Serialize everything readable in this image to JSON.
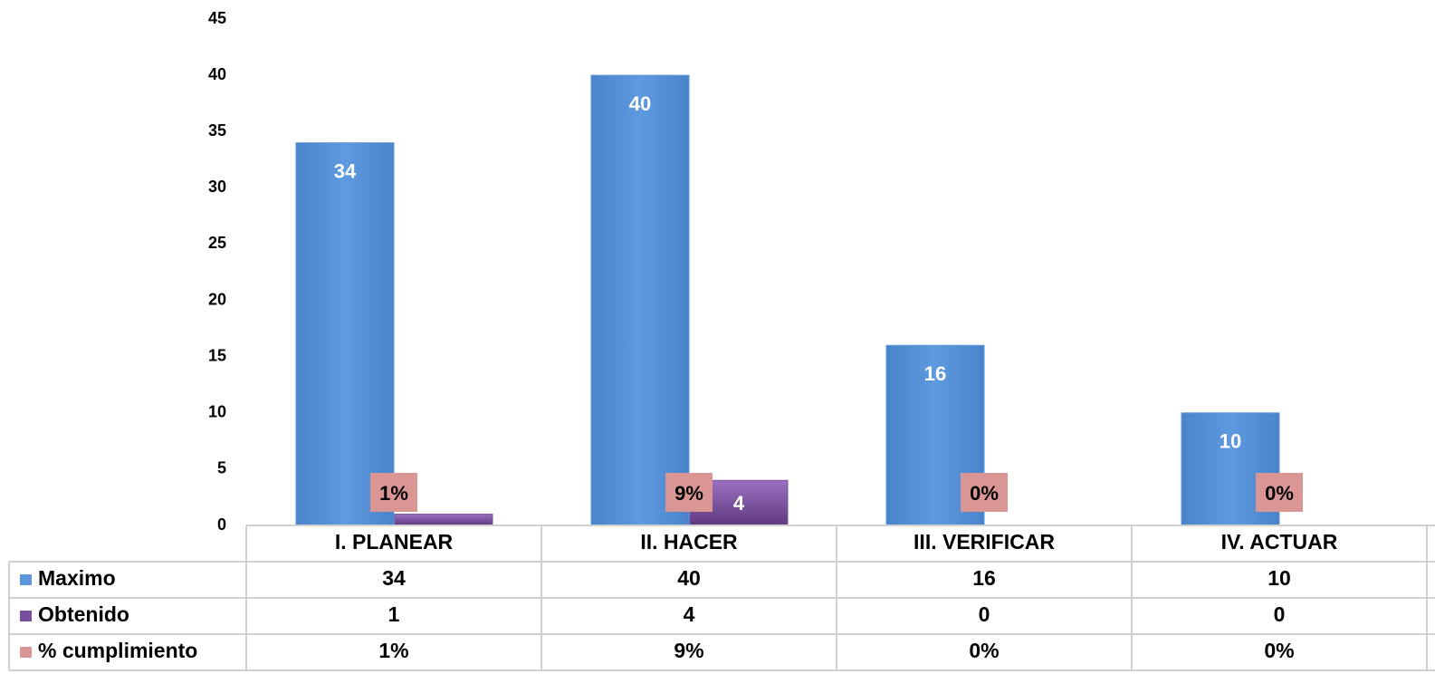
{
  "chart_data": {
    "type": "bar",
    "categories": [
      "I. PLANEAR",
      "II. HACER",
      "III. VERIFICAR",
      "IV. ACTUAR"
    ],
    "series": [
      {
        "name": "Maximo",
        "color": "#5b96dc",
        "values": [
          34,
          40,
          16,
          10
        ]
      },
      {
        "name": "Obtenido",
        "color": "#7b4fa0",
        "values": [
          1,
          4,
          0,
          0
        ]
      },
      {
        "name": "% cumplimiento",
        "color": "#d99694",
        "values": [
          1,
          9,
          0,
          0
        ],
        "value_labels": [
          "1%",
          "9%",
          "0%",
          "0%"
        ]
      }
    ],
    "ylim": [
      0,
      45
    ],
    "yticks": [
      0,
      5,
      10,
      15,
      20,
      25,
      30,
      35,
      40,
      45
    ]
  }
}
